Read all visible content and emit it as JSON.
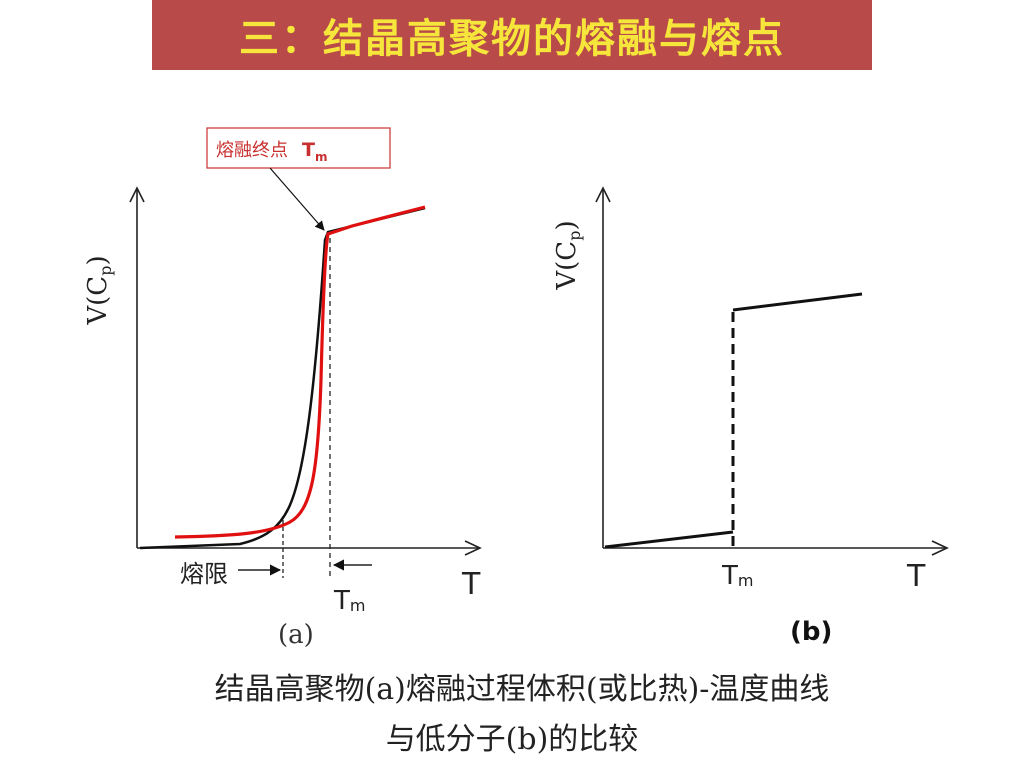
{
  "header": {
    "title": "三：结晶高聚物的熔融与熔点"
  },
  "figure_a": {
    "callout": {
      "text": "熔融终点",
      "label": "T",
      "sub": "m"
    },
    "y_axis_label": {
      "main": "V(C",
      "sub": "p",
      "close": ")"
    },
    "x_axis_label": "T",
    "melt_range_label": "熔限",
    "tm_label": {
      "main": "T",
      "sub": "m"
    },
    "panel_label": "(a)"
  },
  "figure_b": {
    "y_axis_label": {
      "main": "V(C",
      "sub": "p",
      "close": ")"
    },
    "x_axis_label": "T",
    "tm_label": {
      "main": "T",
      "sub": "m"
    },
    "panel_label": "(b)"
  },
  "caption": {
    "line1": "结晶高聚物(a)熔融过程体积(或比热)-温度曲线",
    "line2": "与低分子(b)的比较"
  },
  "colors": {
    "title_bg": "#b84a4a",
    "title_text": "#f6e53a",
    "red_curve": "#e01010",
    "callout_border": "#c83030"
  }
}
